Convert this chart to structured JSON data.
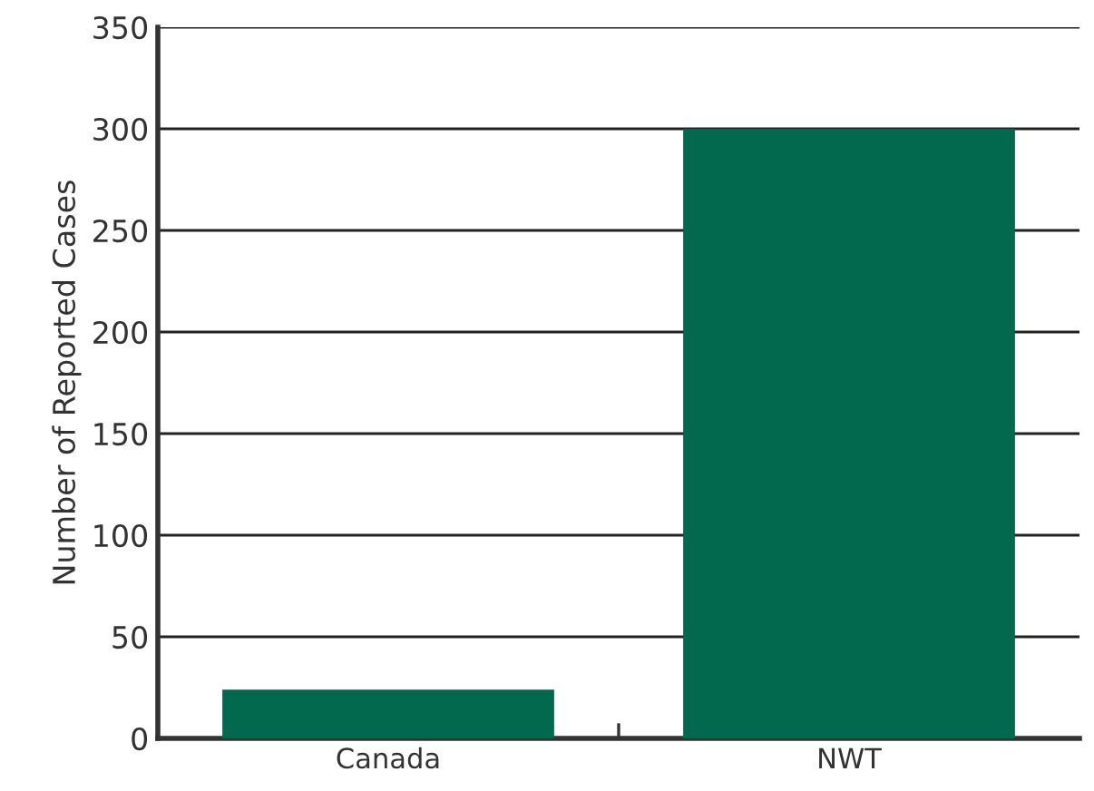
{
  "chart_data": {
    "type": "bar",
    "ylabel": "Number of Reported Cases",
    "categories": [
      "Canada",
      "NWT"
    ],
    "values": [
      24,
      300
    ],
    "color": "#02684e",
    "ylim": [
      0,
      350
    ],
    "yticks": [
      0,
      50,
      100,
      150,
      200,
      250,
      300,
      350
    ],
    "grid": "y",
    "legend": false
  }
}
